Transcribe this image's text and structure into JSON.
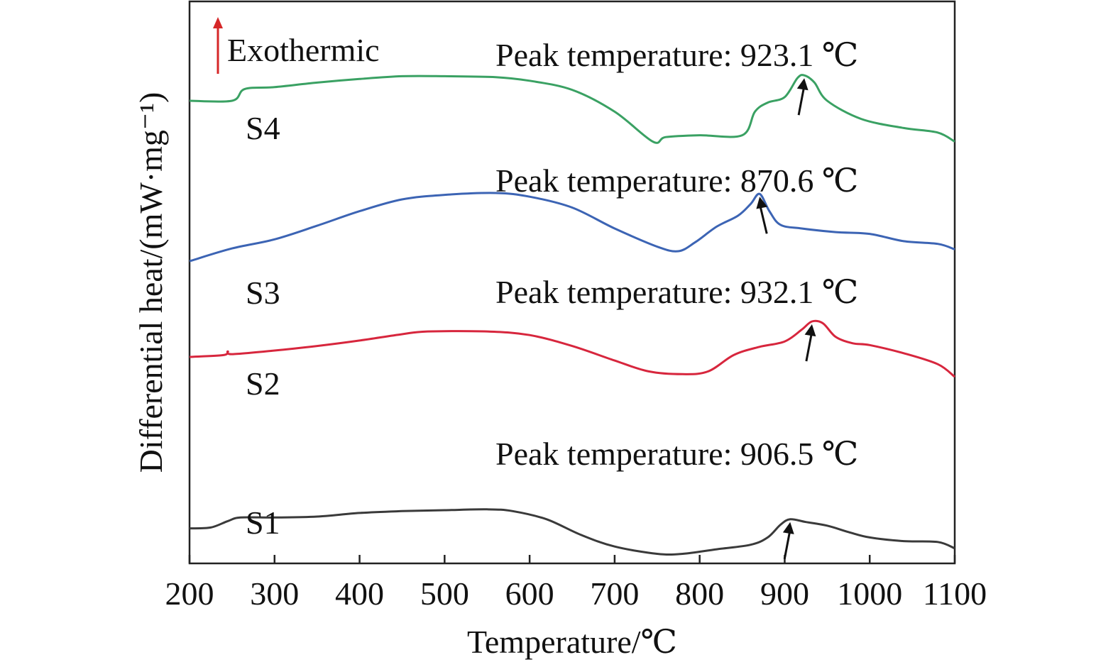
{
  "chart_data": {
    "type": "line",
    "xlabel": "Temperature/℃",
    "ylabel": "Differential heat/(mW·mg⁻¹)",
    "xlim": [
      200,
      1100
    ],
    "xticks": [
      200,
      300,
      400,
      500,
      600,
      700,
      800,
      900,
      1000,
      1100
    ],
    "y_tick_labels": false,
    "grid": false,
    "exothermic_marker": {
      "label": "Exothermic",
      "direction": "up",
      "color": "#d62728"
    },
    "series": [
      {
        "name": "S1",
        "color": "#3a3a3a",
        "offset": 0,
        "peak_label": "Peak temperature: 906.5 ℃",
        "peak_x": 906.5,
        "points": [
          [
            200,
            0.12
          ],
          [
            225,
            0.13
          ],
          [
            245,
            0.2
          ],
          [
            260,
            0.24
          ],
          [
            300,
            0.24
          ],
          [
            350,
            0.25
          ],
          [
            400,
            0.29
          ],
          [
            450,
            0.31
          ],
          [
            500,
            0.32
          ],
          [
            550,
            0.33
          ],
          [
            580,
            0.31
          ],
          [
            620,
            0.22
          ],
          [
            660,
            0.05
          ],
          [
            700,
            -0.08
          ],
          [
            750,
            -0.16
          ],
          [
            780,
            -0.16
          ],
          [
            820,
            -0.11
          ],
          [
            860,
            -0.06
          ],
          [
            880,
            0.02
          ],
          [
            895,
            0.16
          ],
          [
            906.5,
            0.22
          ],
          [
            925,
            0.19
          ],
          [
            950,
            0.15
          ],
          [
            975,
            0.08
          ],
          [
            1000,
            0.02
          ],
          [
            1040,
            -0.02
          ],
          [
            1080,
            -0.03
          ],
          [
            1100,
            -0.1
          ]
        ]
      },
      {
        "name": "S2",
        "color": "#d7263d",
        "offset": 1,
        "peak_label": "Peak temperature: 932.1 ℃",
        "peak_x": 932.1,
        "points": [
          [
            200,
            0.18
          ],
          [
            240,
            0.2
          ],
          [
            245,
            0.24
          ],
          [
            250,
            0.21
          ],
          [
            300,
            0.25
          ],
          [
            350,
            0.3
          ],
          [
            400,
            0.36
          ],
          [
            450,
            0.43
          ],
          [
            480,
            0.46
          ],
          [
            550,
            0.46
          ],
          [
            600,
            0.42
          ],
          [
            650,
            0.3
          ],
          [
            700,
            0.14
          ],
          [
            740,
            0.02
          ],
          [
            780,
            -0.01
          ],
          [
            810,
            0.02
          ],
          [
            840,
            0.2
          ],
          [
            870,
            0.29
          ],
          [
            900,
            0.35
          ],
          [
            920,
            0.48
          ],
          [
            932.1,
            0.57
          ],
          [
            945,
            0.55
          ],
          [
            960,
            0.4
          ],
          [
            980,
            0.33
          ],
          [
            1000,
            0.31
          ],
          [
            1040,
            0.22
          ],
          [
            1080,
            0.1
          ],
          [
            1100,
            -0.04
          ]
        ]
      },
      {
        "name": "S3",
        "color": "#3c64b4",
        "offset": 2,
        "peak_label": "Peak temperature: 870.6 ℃",
        "peak_x": 870.6,
        "points": [
          [
            200,
            -0.18
          ],
          [
            250,
            -0.04
          ],
          [
            300,
            0.06
          ],
          [
            350,
            0.21
          ],
          [
            400,
            0.37
          ],
          [
            450,
            0.5
          ],
          [
            500,
            0.55
          ],
          [
            560,
            0.57
          ],
          [
            600,
            0.53
          ],
          [
            650,
            0.41
          ],
          [
            700,
            0.18
          ],
          [
            750,
            -0.02
          ],
          [
            775,
            -0.07
          ],
          [
            795,
            0.03
          ],
          [
            820,
            0.2
          ],
          [
            845,
            0.32
          ],
          [
            860,
            0.45
          ],
          [
            870.6,
            0.56
          ],
          [
            882,
            0.37
          ],
          [
            895,
            0.22
          ],
          [
            920,
            0.18
          ],
          [
            960,
            0.14
          ],
          [
            1000,
            0.12
          ],
          [
            1040,
            0.04
          ],
          [
            1080,
            0.01
          ],
          [
            1100,
            -0.05
          ]
        ]
      },
      {
        "name": "S4",
        "color": "#3aa163",
        "offset": 3,
        "peak_label": "Peak temperature: 923.1 ℃",
        "peak_x": 923.1,
        "points": [
          [
            200,
            0.0
          ],
          [
            250,
            0.0
          ],
          [
            265,
            0.13
          ],
          [
            300,
            0.15
          ],
          [
            350,
            0.2
          ],
          [
            400,
            0.24
          ],
          [
            450,
            0.27
          ],
          [
            500,
            0.27
          ],
          [
            560,
            0.26
          ],
          [
            600,
            0.22
          ],
          [
            650,
            0.12
          ],
          [
            700,
            -0.12
          ],
          [
            745,
            -0.45
          ],
          [
            760,
            -0.4
          ],
          [
            800,
            -0.38
          ],
          [
            850,
            -0.38
          ],
          [
            865,
            -0.12
          ],
          [
            880,
            -0.02
          ],
          [
            900,
            0.04
          ],
          [
            915,
            0.25
          ],
          [
            923.1,
            0.28
          ],
          [
            935,
            0.2
          ],
          [
            950,
            0.0
          ],
          [
            990,
            -0.2
          ],
          [
            1040,
            -0.3
          ],
          [
            1080,
            -0.35
          ],
          [
            1100,
            -0.45
          ]
        ]
      }
    ]
  }
}
